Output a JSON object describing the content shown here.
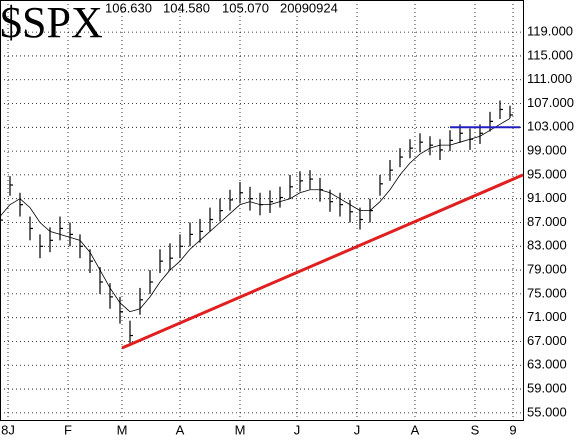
{
  "chart_data": {
    "type": "ohlc",
    "title": "$SPX",
    "header": [
      "106.630",
      "104.580",
      "105.070",
      "20090924"
    ],
    "x": [
      0,
      1,
      2,
      3,
      4,
      5,
      6,
      7,
      8,
      9,
      10,
      11,
      12,
      13,
      14,
      15,
      16,
      17,
      18,
      19,
      20,
      21,
      22,
      23,
      24,
      25,
      26,
      27,
      28,
      29,
      30,
      31,
      32,
      33,
      34,
      35,
      36,
      37,
      38,
      39,
      40,
      41,
      42,
      43,
      44,
      45,
      46,
      47,
      48,
      49,
      50,
      51
    ],
    "series": [
      {
        "name": "high",
        "color": "#000000",
        "values": [
          89.5,
          94.8,
          92,
          88,
          85,
          86.2,
          88,
          87,
          85,
          82.5,
          79.5,
          76.8,
          74.5,
          70.5,
          76,
          79,
          82.5,
          83.5,
          85,
          87,
          87.6,
          89.5,
          91,
          92.5,
          93.8,
          93,
          92,
          92.4,
          93,
          95,
          95.6,
          95.8,
          94.5,
          92.5,
          92,
          90.8,
          89.5,
          91,
          95,
          97.5,
          99.5,
          101,
          102,
          101.5,
          101,
          102.5,
          103.5,
          102.8,
          103.5,
          105.6,
          107.5,
          106.63
        ]
      },
      {
        "name": "low",
        "color": "#000000",
        "values": [
          85.5,
          91.5,
          88,
          84,
          81,
          82,
          84,
          83,
          81,
          78.5,
          75,
          72.5,
          70,
          66.5,
          71.5,
          75,
          78.5,
          79,
          81,
          83,
          83.6,
          85.5,
          87.2,
          89,
          90.2,
          89,
          88.2,
          88.6,
          89.5,
          91,
          92.2,
          92.6,
          90.5,
          88.8,
          88,
          87,
          85.8,
          87,
          91.5,
          94,
          96.3,
          97.8,
          98.8,
          98.3,
          97.5,
          99,
          100.4,
          99.2,
          100.2,
          102.3,
          104.4,
          104.58
        ]
      },
      {
        "name": "close",
        "color": "#000000",
        "values": [
          87.4,
          93.3,
          90,
          86,
          83,
          84,
          86,
          85,
          83,
          80.5,
          77,
          74.5,
          72,
          68,
          74,
          77,
          80.5,
          81,
          83,
          85,
          85.5,
          87.5,
          89,
          90.8,
          92,
          91,
          90,
          90.5,
          91.2,
          93,
          94,
          94.3,
          92.5,
          90.5,
          90,
          88.8,
          87.5,
          89,
          93.5,
          95.8,
          98,
          99.5,
          100.5,
          100,
          99.2,
          100.8,
          102,
          101,
          102,
          104,
          106,
          105.07
        ]
      },
      {
        "name": "ma",
        "color": "#000000",
        "values": [
          88,
          90,
          91,
          89.5,
          87,
          85.5,
          85,
          84.5,
          84,
          82,
          79,
          76,
          73.5,
          72,
          72.5,
          74.5,
          77,
          79,
          80.5,
          82.5,
          84,
          85.5,
          87,
          88.5,
          90,
          90.5,
          90,
          90,
          90.5,
          91,
          92,
          92.5,
          92.5,
          92,
          91,
          90,
          89,
          89,
          90.5,
          92.5,
          95,
          97,
          98.5,
          99.5,
          100,
          100,
          100.5,
          101,
          101.5,
          102.5,
          103.5,
          104.5
        ]
      }
    ],
    "trendline": {
      "color": "#e02020",
      "x": [
        12.2,
        52.3
      ],
      "values": [
        65.9,
        95
      ]
    },
    "resistance": {
      "color": "#2020c0",
      "x": [
        45,
        52
      ],
      "values": [
        103,
        103
      ]
    },
    "xlim": [
      0,
      52.3
    ],
    "xticks": [
      {
        "value": 0.8,
        "label": "8J"
      },
      {
        "value": 6.8,
        "label": "F"
      },
      {
        "value": 12.2,
        "label": "M"
      },
      {
        "value": 18,
        "label": "A"
      },
      {
        "value": 24,
        "label": "M"
      },
      {
        "value": 29.7,
        "label": "J"
      },
      {
        "value": 35.7,
        "label": "J"
      },
      {
        "value": 41.5,
        "label": "A"
      },
      {
        "value": 47.5,
        "label": "S"
      },
      {
        "value": 51.3,
        "label": "9"
      }
    ],
    "ylim": [
      53.8,
      124.4
    ],
    "yticks": [
      {
        "value": 55,
        "label": "55.000"
      },
      {
        "value": 59,
        "label": "59.000"
      },
      {
        "value": 63,
        "label": "63.000"
      },
      {
        "value": 67,
        "label": "67.000"
      },
      {
        "value": 71,
        "label": "71.000"
      },
      {
        "value": 75,
        "label": "75.000"
      },
      {
        "value": 79,
        "label": "79.000"
      },
      {
        "value": 83,
        "label": "83.000"
      },
      {
        "value": 87,
        "label": "87.000"
      },
      {
        "value": 91,
        "label": "91.000"
      },
      {
        "value": 95,
        "label": "95.000"
      },
      {
        "value": 99,
        "label": "99.000"
      },
      {
        "value": 103,
        "label": "103.000"
      },
      {
        "value": 107,
        "label": "107.000"
      },
      {
        "value": 111,
        "label": "111.000"
      },
      {
        "value": 115,
        "label": "115.000"
      },
      {
        "value": 119,
        "label": "119.000"
      }
    ],
    "grid": true
  }
}
